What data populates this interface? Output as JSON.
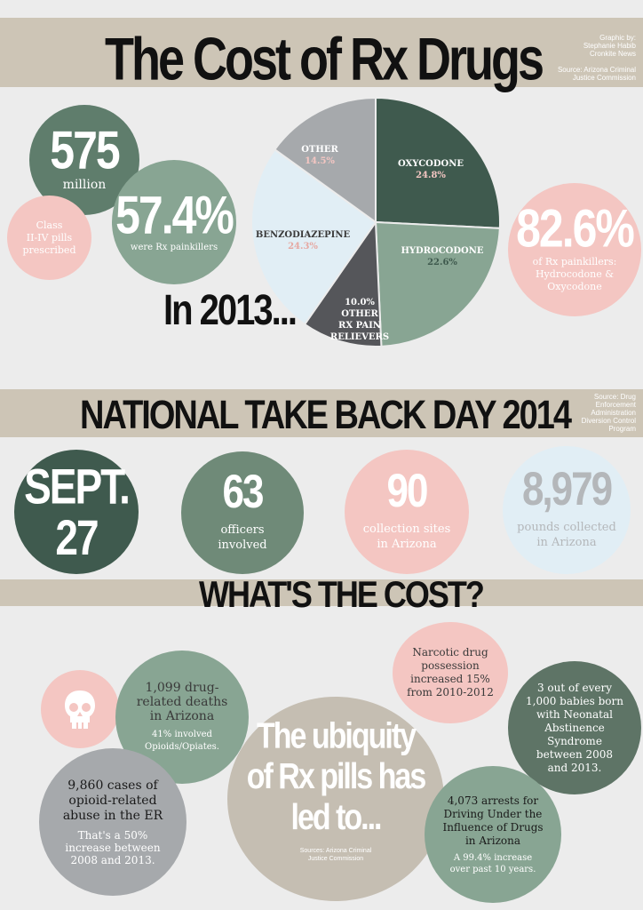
{
  "header": {
    "title": "The Cost of Rx Drugs",
    "credit_line1": "Graphic by:",
    "credit_line2": "Stephanie Habib",
    "credit_line3": "Cronkite News",
    "source_line1": "Source: Arizona Criminal",
    "source_line2": "Justice Commission"
  },
  "stats": {
    "pills_number": "575",
    "pills_unit": "million",
    "pills_desc1": "Class",
    "pills_desc2": "II-IV pills",
    "pills_desc3": "prescribed",
    "painkiller_pct": "57.4%",
    "painkiller_desc": "were Rx painkillers",
    "year_label": "In 2013...",
    "hydro_oxy_pct": "82.6%",
    "hydro_oxy_desc1": "of Rx painkillers:",
    "hydro_oxy_desc2": "Hydrocodone &",
    "hydro_oxy_desc3": "Oxycodone"
  },
  "chart_data": {
    "type": "pie",
    "slices": [
      {
        "label": "OXYCODONE",
        "value": 24.8,
        "color": "#3f5a4e"
      },
      {
        "label": "HYDROCODONE",
        "value": 22.6,
        "color": "#88a593"
      },
      {
        "label": "OTHER RX PAIN RELIEVERS",
        "value": 10.0,
        "color": "#55565a"
      },
      {
        "label": "BENZODIAZEPINE",
        "value": 24.3,
        "color": "#e1eef5"
      },
      {
        "label": "OTHER",
        "value": 14.5,
        "color": "#a6a9ac"
      }
    ],
    "labels_text": {
      "oxy_name": "OXYCODONE",
      "oxy_val": "24.8%",
      "hydro_name": "HYDROCODONE",
      "hydro_val": "22.6%",
      "otherrx_val": "10.0%",
      "otherrx_l1": "OTHER",
      "otherrx_l2": "RX PAIN",
      "otherrx_l3": "RELIEVERS",
      "benzo_name": "BENZODIAZEPINE",
      "benzo_val": "24.3%",
      "other_name": "OTHER",
      "other_val": "14.5%"
    }
  },
  "takeback": {
    "title": "NATIONAL TAKE BACK DAY 2014",
    "source_l1": "Source: Drug",
    "source_l2": "Enforcement",
    "source_l3": "Administration",
    "source_l4": "Diversion Control",
    "source_l5": "Program",
    "date_l1": "SEPT.",
    "date_l2": "27",
    "officers_num": "63",
    "officers_l1": "officers",
    "officers_l2": "involved",
    "sites_num": "90",
    "sites_l1": "collection sites",
    "sites_l2": "in Arizona",
    "pounds_num": "8,979",
    "pounds_l1": "pounds collected",
    "pounds_l2": "in Arizona"
  },
  "cost": {
    "title": "WHAT'S THE COST?",
    "deaths_l1": "1,099 drug-",
    "deaths_l2": "related deaths",
    "deaths_l3": "in Arizona",
    "deaths_sub1": "41% involved",
    "deaths_sub2": "Opioids/Opiates.",
    "narcotic_l1": "Narcotic drug",
    "narcotic_l2": "possession",
    "narcotic_l3": "increased 15%",
    "narcotic_l4": "from 2010-2012",
    "babies_l1": "3 out of every",
    "babies_l2": "1,000 babies born",
    "babies_l3": "with Neonatal",
    "babies_l4": "Abstinence",
    "babies_l5": "Syndrome",
    "babies_l6": "between 2008",
    "babies_l7": "and 2013.",
    "ubiq_l1": "The ubiquity",
    "ubiq_l2": "of Rx pills has",
    "ubiq_l3": "led to...",
    "ubiq_src1": "Sources: Arizona Criminal",
    "ubiq_src2": "Justice Commission",
    "er_l1": "9,860 cases of",
    "er_l2": "opioid-related",
    "er_l3": "abuse in the ER",
    "er_sub1": "That's a 50%",
    "er_sub2": "increase between",
    "er_sub3": "2008 and 2013.",
    "dui_l1": "4,073 arrests for",
    "dui_l2": "Driving Under the",
    "dui_l3": "Influence of Drugs",
    "dui_l4": "in Arizona",
    "dui_sub1": "A 99.4% increase",
    "dui_sub2": "over past 10 years.",
    "skull_icon": "skull-icon"
  },
  "colors": {
    "band": "#cdc5b6",
    "dark_green": "#3f5a4e",
    "mid_green": "#6f8a78",
    "pink": "#f4c6c2",
    "light_blue": "#e1eef5",
    "gray": "#a6a9ac",
    "beige": "#c5beb2"
  }
}
